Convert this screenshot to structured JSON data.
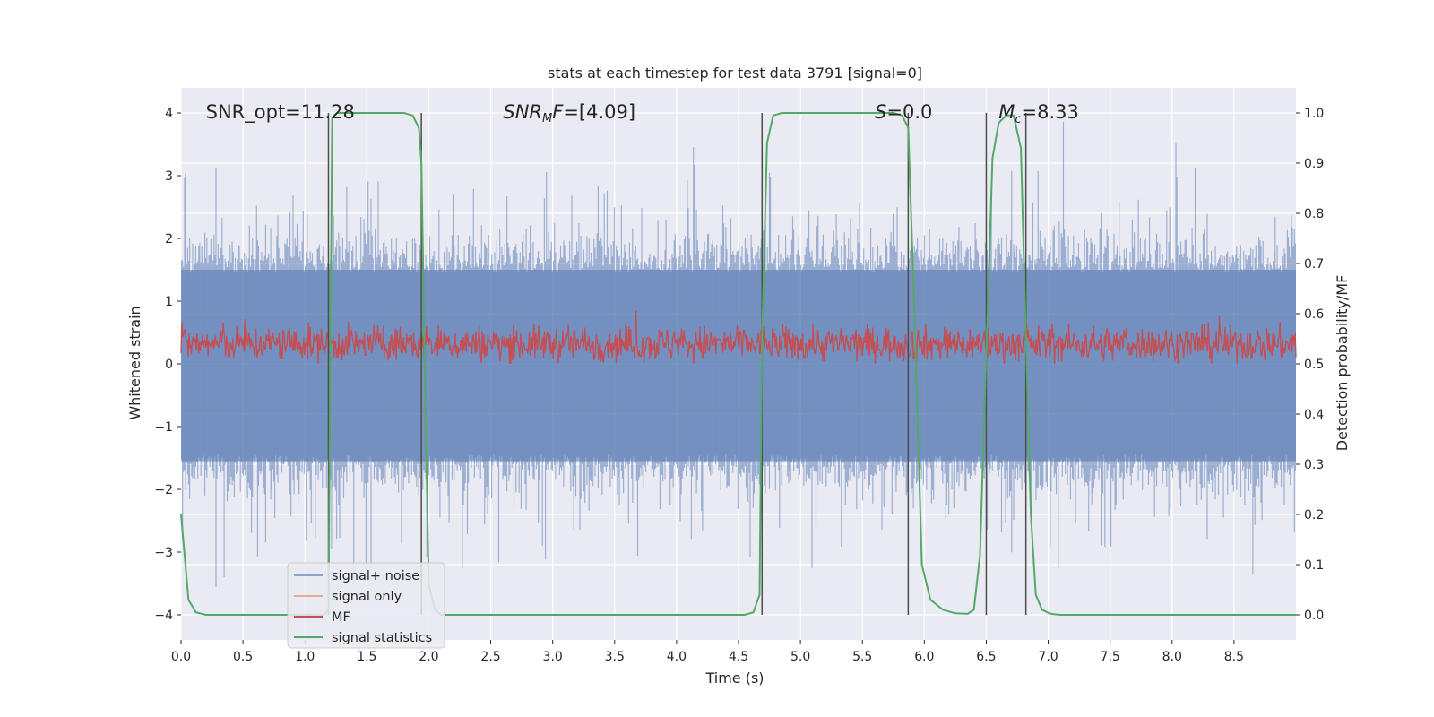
{
  "chart_data": {
    "type": "line",
    "title": "stats at each timestep for test data 3791 [signal=0]",
    "xlabel": "Time (s)",
    "ylabel": "Whitened strain",
    "ylabel_right": "Detection probability/MF",
    "xlim": [
      0.0,
      9.0
    ],
    "ylim": [
      -4.4,
      4.4
    ],
    "ylim_right": [
      -0.05,
      1.05
    ],
    "xticks": [
      0.0,
      0.5,
      1.0,
      1.5,
      2.0,
      2.5,
      3.0,
      3.5,
      4.0,
      4.5,
      5.0,
      5.5,
      6.0,
      6.5,
      7.0,
      7.5,
      8.0,
      8.5
    ],
    "xtick_labels": [
      "0.0",
      "0.5",
      "1.0",
      "1.5",
      "2.0",
      "2.5",
      "3.0",
      "3.5",
      "4.0",
      "4.5",
      "5.0",
      "5.5",
      "6.0",
      "6.5",
      "7.0",
      "7.5",
      "8.0",
      "8.5"
    ],
    "yticks": [
      4,
      3,
      2,
      1,
      0,
      -1,
      -2,
      -3,
      -4
    ],
    "ytick_labels": [
      "4",
      "3",
      "2",
      "1",
      "0",
      "−1",
      "−2",
      "−3",
      "−4"
    ],
    "yticks_right": [
      1.0,
      0.9,
      0.8,
      0.7,
      0.6,
      0.5,
      0.4,
      0.3,
      0.2,
      0.1,
      0.0
    ],
    "ytick_labels_right": [
      "1.0",
      "0.9",
      "0.8",
      "0.7",
      "0.6",
      "0.5",
      "0.4",
      "0.3",
      "0.2",
      "0.1",
      "0.0"
    ],
    "annotations": [
      {
        "name": "snr-opt-annotation",
        "x": 0.2,
        "y": 4.0,
        "html": "SNR_opt=11.28"
      },
      {
        "name": "snr-mf-annotation",
        "x": 2.6,
        "y": 4.0,
        "html": "<tspan font-style=\"italic\">SNR</tspan><tspan font-style=\"italic\" font-size=\"13\" dy=\"4\">M</tspan><tspan font-style=\"italic\" dy=\"-4\">F</tspan>=[4.09]"
      },
      {
        "name": "s-annotation",
        "x": 5.6,
        "y": 4.0,
        "html": "<tspan font-style=\"italic\">S</tspan>=0.0"
      },
      {
        "name": "mc-annotation",
        "x": 6.6,
        "y": 4.0,
        "html": "<tspan font-style=\"italic\">M</tspan><tspan font-style=\"italic\" font-size=\"13\" dy=\"5\">c</tspan><tspan dy=\"-5\">=8.33</tspan>"
      }
    ],
    "vertical_markers_s": [
      1.19,
      1.94,
      4.69,
      5.87,
      6.5,
      6.82
    ],
    "vertical_marker_range_right": [
      0.0,
      1.0
    ],
    "series": [
      {
        "name": "signal+ noise",
        "color": "#4c72b0",
        "opacity": 0.5,
        "noise_amplitude": 1.2,
        "peak_range": [
          -3.8,
          4.0
        ],
        "x_range": [
          0.0,
          9.0
        ]
      },
      {
        "name": "signal only",
        "color": "#dd8452",
        "opacity": 0.5,
        "values": [
          0.0,
          0.0
        ],
        "x": [
          0.0,
          9.0
        ]
      },
      {
        "name": "MF",
        "color": "#c44e52",
        "axis": "right",
        "mean": 0.54,
        "range": [
          0.5,
          0.63
        ],
        "x_range": [
          0.0,
          9.0
        ]
      },
      {
        "name": "signal statistics",
        "color": "#55a868",
        "axis": "right",
        "x": [
          0.0,
          0.06,
          0.12,
          0.2,
          0.4,
          1.15,
          1.19,
          1.22,
          1.26,
          1.3,
          1.5,
          1.8,
          1.87,
          1.92,
          1.94,
          1.97,
          2.0,
          2.05,
          2.1,
          2.3,
          4.55,
          4.62,
          4.67,
          4.69,
          4.73,
          4.78,
          4.85,
          5.2,
          5.75,
          5.82,
          5.87,
          5.92,
          5.98,
          6.05,
          6.15,
          6.25,
          6.35,
          6.4,
          6.45,
          6.5,
          6.55,
          6.6,
          6.66,
          6.72,
          6.78,
          6.82,
          6.86,
          6.9,
          6.95,
          7.02,
          7.1,
          9.0
        ],
        "values": [
          0.2,
          0.03,
          0.005,
          0.0,
          0.0,
          0.0,
          0.01,
          0.99,
          1.0,
          1.0,
          1.0,
          1.0,
          0.995,
          0.97,
          0.9,
          0.45,
          0.06,
          0.01,
          0.0,
          0.0,
          0.0,
          0.005,
          0.04,
          0.55,
          0.94,
          0.995,
          1.0,
          1.0,
          1.0,
          0.995,
          0.97,
          0.6,
          0.1,
          0.03,
          0.01,
          0.003,
          0.002,
          0.01,
          0.12,
          0.52,
          0.91,
          0.98,
          0.995,
          0.995,
          0.93,
          0.55,
          0.2,
          0.04,
          0.01,
          0.002,
          0.0,
          0.0
        ]
      }
    ],
    "legend": {
      "position": "lower-left",
      "entries": [
        "signal+ noise",
        "signal only",
        "MF",
        "signal statistics"
      ]
    }
  }
}
